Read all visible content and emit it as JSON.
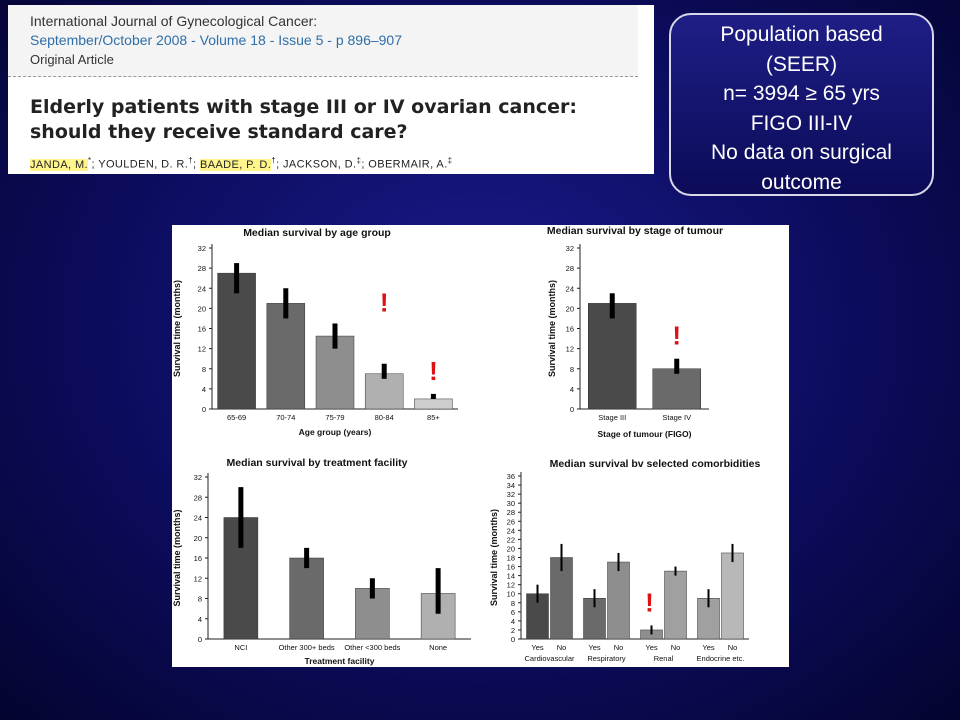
{
  "header": {
    "journal": "International Journal of Gynecological Cancer:",
    "issue": "September/October 2008 - Volume 18 - Issue 5 - p 896–907",
    "article_type": "Original Article",
    "title": "Elderly patients with stage III or IV ovarian cancer: should they receive standard care?",
    "authors": [
      {
        "name": "JANDA, M.",
        "mark": "*",
        "highlight": true
      },
      {
        "name": "YOULDEN, D. R.",
        "mark": "†",
        "highlight": false
      },
      {
        "name": "BAADE, P. D.",
        "mark": "†",
        "highlight": true
      },
      {
        "name": "JACKSON, D.",
        "mark": "‡",
        "highlight": false
      },
      {
        "name": "OBERMAIR, A.",
        "mark": "‡",
        "highlight": false
      }
    ]
  },
  "callout": {
    "lines": [
      "Population based",
      "(SEER)",
      "n= 3994 ≥ 65 yrs",
      "FIGO III-IV",
      "No data on surgical",
      "outcome"
    ]
  },
  "colors": {
    "alert": "#dd1111",
    "header_link": "#2f6ea8"
  },
  "chart_data": [
    {
      "type": "bar",
      "title": "Median survival by age group",
      "xlabel": "Age group (years)",
      "ylabel": "Survival time (months)",
      "categories": [
        "65-69",
        "70-74",
        "75-79",
        "80-84",
        "85+"
      ],
      "values": [
        27,
        21,
        14.5,
        7,
        2
      ],
      "ci": [
        [
          23,
          29
        ],
        [
          18,
          24
        ],
        [
          12,
          17
        ],
        [
          6,
          9
        ],
        [
          2,
          3
        ]
      ],
      "colors": [
        "#4a4a4a",
        "#6a6a6a",
        "#8e8e8e",
        "#b0b0b0",
        "#cdcdcd"
      ],
      "ylim": [
        0,
        32
      ],
      "yticks": [
        0,
        4,
        8,
        12,
        16,
        20,
        24,
        28,
        32
      ],
      "alerts": [
        3,
        4
      ]
    },
    {
      "type": "bar",
      "title": "Median survival by stage of tumour",
      "xlabel": "Stage of tumour (FIGO)",
      "ylabel": "Survival time (months)",
      "categories": [
        "Stage III",
        "Stage IV"
      ],
      "values": [
        21,
        8
      ],
      "ci": [
        [
          18,
          23
        ],
        [
          7,
          10
        ]
      ],
      "colors": [
        "#4a4a4a",
        "#6a6a6a"
      ],
      "ylim": [
        0,
        32
      ],
      "yticks": [
        0,
        4,
        8,
        12,
        16,
        20,
        24,
        28,
        32
      ],
      "alerts": [
        1
      ]
    },
    {
      "type": "bar",
      "title": "Median survival by treatment facility",
      "xlabel": "Treatment facility",
      "ylabel": "Survival time (months)",
      "categories": [
        "NCI",
        "Other 300+ beds",
        "Other <300 beds",
        "None"
      ],
      "values": [
        24,
        16,
        10,
        9
      ],
      "ci": [
        [
          18,
          30
        ],
        [
          14,
          18
        ],
        [
          8,
          12
        ],
        [
          5,
          14
        ]
      ],
      "colors": [
        "#4a4a4a",
        "#6a6a6a",
        "#8e8e8e",
        "#b0b0b0"
      ],
      "ylim": [
        0,
        32
      ],
      "yticks": [
        0,
        4,
        8,
        12,
        16,
        20,
        24,
        28,
        32
      ],
      "alerts": []
    },
    {
      "type": "bar",
      "title": "Median survival bv selected comorbidities",
      "xlabel": "",
      "ylabel": "Survival time (months)",
      "groups": [
        "Cardiovascular",
        "Respiratory",
        "Renal",
        "Endocrine etc."
      ],
      "categories": [
        "Yes",
        "No",
        "Yes",
        "No",
        "Yes",
        "No",
        "Yes",
        "No"
      ],
      "values": [
        10,
        18,
        9,
        17,
        2,
        15,
        9,
        19
      ],
      "ci": [
        [
          8,
          12
        ],
        [
          15,
          21
        ],
        [
          7,
          11
        ],
        [
          15,
          19
        ],
        [
          1,
          3
        ],
        [
          14,
          16
        ],
        [
          7,
          11
        ],
        [
          17,
          21
        ]
      ],
      "colors": [
        "#4a4a4a",
        "#6a6a6a",
        "#6a6a6a",
        "#8e8e8e",
        "#8e8e8e",
        "#a0a0a0",
        "#a0a0a0",
        "#b8b8b8"
      ],
      "ylim": [
        0,
        36
      ],
      "yticks": [
        0,
        2,
        4,
        6,
        8,
        10,
        12,
        14,
        16,
        18,
        20,
        22,
        24,
        26,
        28,
        30,
        32,
        34,
        36
      ],
      "alerts": [
        4
      ]
    }
  ]
}
